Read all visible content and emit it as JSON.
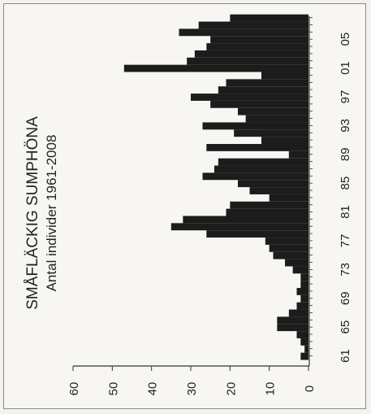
{
  "chart_data": {
    "type": "bar",
    "orientation": "rotated-90-clockwise",
    "title": "SMÅFLÄCKIG SUMPHÖNA",
    "subtitle": "Antal individer 1961-2008",
    "x": [
      1961,
      1962,
      1963,
      1964,
      1965,
      1966,
      1967,
      1968,
      1969,
      1970,
      1971,
      1972,
      1973,
      1974,
      1975,
      1976,
      1977,
      1978,
      1979,
      1980,
      1981,
      1982,
      1983,
      1984,
      1985,
      1986,
      1987,
      1988,
      1989,
      1990,
      1991,
      1992,
      1993,
      1994,
      1995,
      1996,
      1997,
      1998,
      1999,
      2000,
      2001,
      2002,
      2003,
      2004,
      2005,
      2006,
      2007,
      2008
    ],
    "values": [
      2,
      1,
      2,
      3,
      8,
      8,
      5,
      3,
      2,
      3,
      2,
      2,
      4,
      6,
      9,
      10,
      11,
      26,
      35,
      32,
      21,
      20,
      10,
      15,
      18,
      27,
      24,
      23,
      5,
      26,
      12,
      19,
      27,
      16,
      18,
      25,
      30,
      23,
      21,
      12,
      47,
      31,
      29,
      26,
      25,
      33,
      28,
      20
    ],
    "x_tick_labels": [
      "61",
      "65",
      "69",
      "73",
      "77",
      "81",
      "85",
      "89",
      "93",
      "97",
      "01",
      "05"
    ],
    "x_tick_years": [
      1961,
      1965,
      1969,
      1973,
      1977,
      1981,
      1985,
      1989,
      1993,
      1997,
      2001,
      2005
    ],
    "y_tick_labels": [
      "0",
      "10",
      "20",
      "30",
      "40",
      "50",
      "60"
    ],
    "ylim": [
      0,
      60
    ],
    "bar_color": "#1c1c1c",
    "axis_color": "#333333",
    "grid": false,
    "legend": false
  }
}
